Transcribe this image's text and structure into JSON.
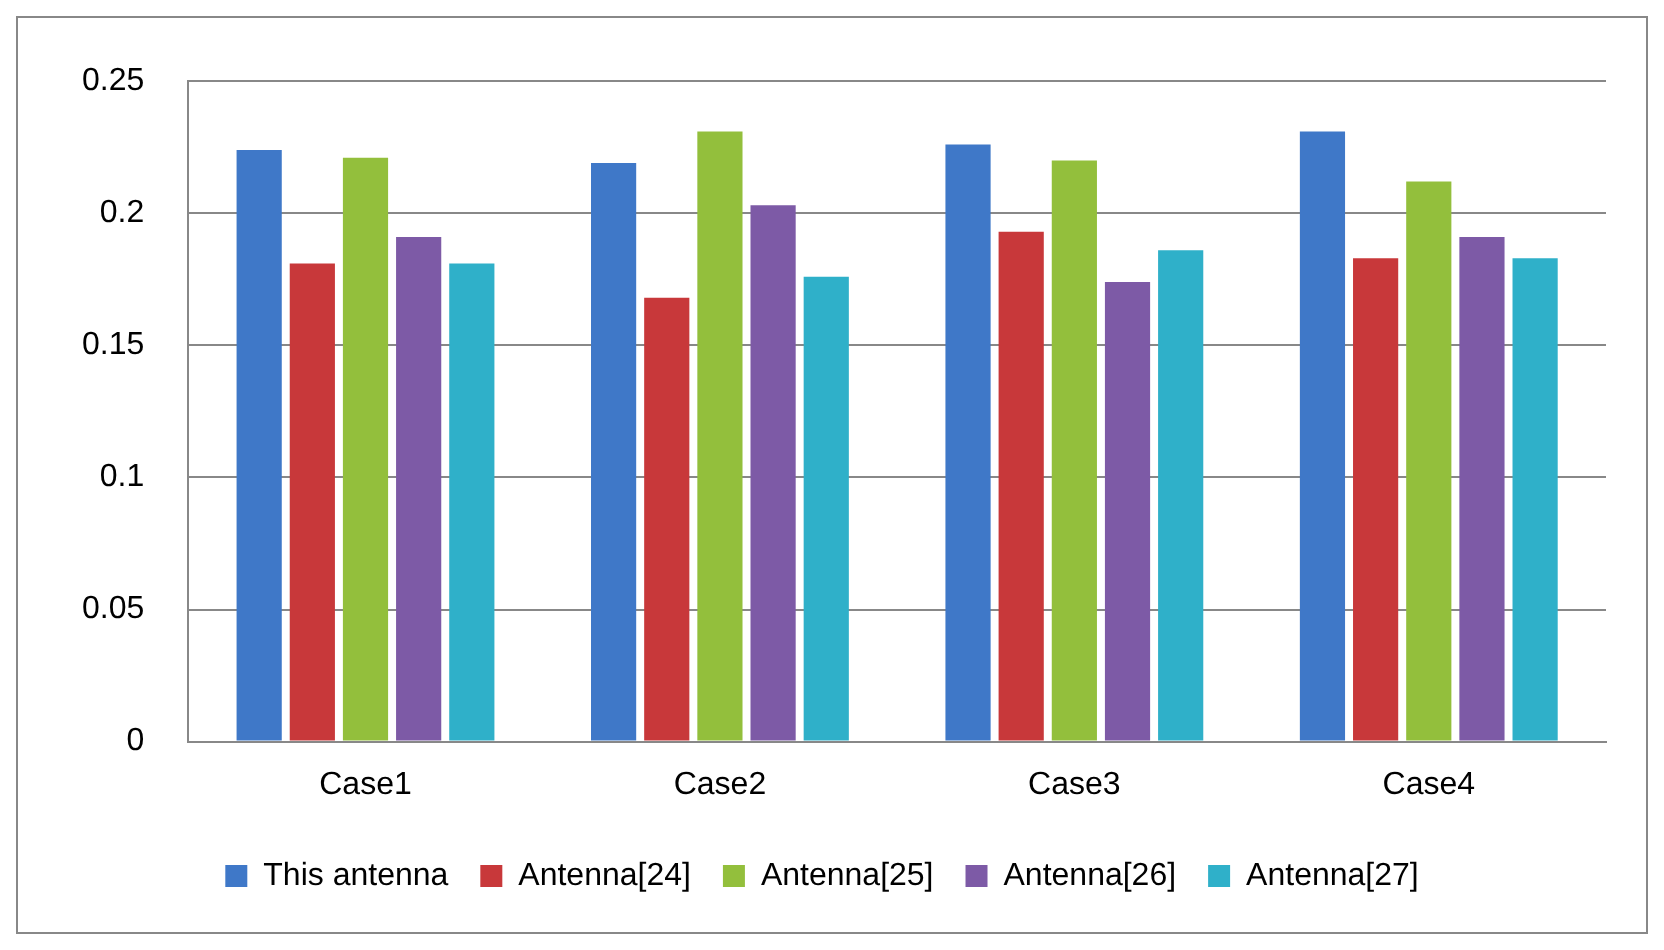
{
  "chart_data": {
    "type": "bar",
    "categories": [
      "Case1",
      "Case2",
      "Case3",
      "Case4"
    ],
    "series": [
      {
        "name": "This antenna",
        "color": "#3f78c8",
        "values": [
          0.224,
          0.219,
          0.226,
          0.231
        ]
      },
      {
        "name": "Antenna[24]",
        "color": "#c8383a",
        "values": [
          0.181,
          0.168,
          0.193,
          0.183
        ]
      },
      {
        "name": "Antenna[25]",
        "color": "#93bf3c",
        "values": [
          0.221,
          0.231,
          0.22,
          0.212
        ]
      },
      {
        "name": "Antenna[26]",
        "color": "#7d5aa6",
        "values": [
          0.191,
          0.203,
          0.174,
          0.191
        ]
      },
      {
        "name": "Antenna[27]",
        "color": "#2fb0c9",
        "values": [
          0.181,
          0.176,
          0.186,
          0.183
        ]
      }
    ],
    "ylim": [
      0,
      0.25
    ],
    "yticks": [
      0,
      0.05,
      0.1,
      0.15,
      0.2,
      0.25
    ],
    "grid": "y",
    "legend": "bottom"
  }
}
